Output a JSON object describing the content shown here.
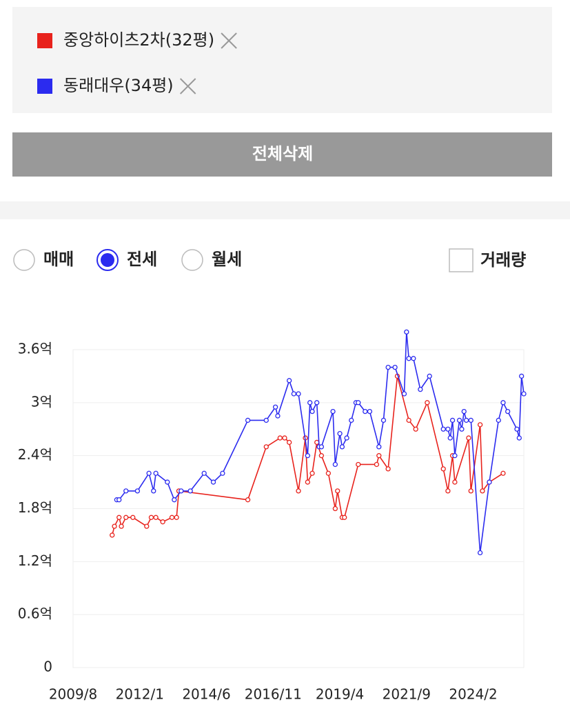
{
  "page": {
    "delete_all_button": "전체삭제",
    "trade_types": {
      "options": [
        "매매",
        "전세",
        "월세"
      ],
      "selected": 1
    },
    "volume_checkbox": {
      "label": "거래량",
      "checked": false
    }
  },
  "chart_data": {
    "type": "line",
    "xlim": [
      "2009/8",
      "2025/12"
    ],
    "xticks": [
      "2009/8",
      "2012/1",
      "2014/6",
      "2016/11",
      "2019/4",
      "2021/9",
      "2024/2"
    ],
    "ylim": [
      0,
      3.6
    ],
    "yticks": [
      0,
      {
        "value": 0.6,
        "label": "0.6억"
      },
      {
        "value": 1.2,
        "label": "1.2억"
      },
      {
        "value": 1.8,
        "label": "1.8억"
      },
      {
        "value": 2.4,
        "label": "2.4억"
      },
      {
        "value": 3,
        "label": "3억"
      },
      {
        "value": 3.6,
        "label": "3.6억"
      }
    ],
    "grid": true,
    "series": [
      {
        "name": "중앙하이츠2차(32평)",
        "color": "#e8221c",
        "x": [
          "2011/1",
          "2011/2",
          "2011/4",
          "2011/5",
          "2011/7",
          "2011/10",
          "2012/4",
          "2012/6",
          "2012/8",
          "2012/11",
          "2013/3",
          "2013/5",
          "2013/6",
          "2015/12",
          "2016/8",
          "2017/2",
          "2017/4",
          "2017/6",
          "2017/10",
          "2018/1",
          "2018/2",
          "2018/4",
          "2018/6",
          "2018/8",
          "2018/11",
          "2019/2",
          "2019/3",
          "2019/5",
          "2019/6",
          "2019/12",
          "2020/8",
          "2020/9",
          "2021/1",
          "2021/5",
          "2021/10",
          "2022/1",
          "2022/6",
          "2023/1",
          "2023/3",
          "2023/5",
          "2023/6",
          "2023/12",
          "2024/1",
          "2024/5",
          "2024/6",
          "2024/9",
          "2025/3"
        ],
        "values": [
          1.5,
          1.6,
          1.7,
          1.6,
          1.7,
          1.7,
          1.6,
          1.7,
          1.7,
          1.65,
          1.7,
          1.7,
          2.0,
          1.9,
          2.5,
          2.6,
          2.6,
          2.55,
          2.0,
          2.6,
          2.1,
          2.2,
          2.55,
          2.4,
          2.2,
          1.8,
          2.0,
          1.7,
          1.7,
          2.3,
          2.3,
          2.4,
          2.25,
          3.3,
          2.8,
          2.7,
          3.0,
          2.25,
          2.0,
          2.4,
          2.1,
          2.6,
          2.0,
          2.75,
          2.0,
          2.1,
          2.2
        ]
      },
      {
        "name": "동래대우(34평)",
        "color": "#2b2bef",
        "x": [
          "2011/3",
          "2011/4",
          "2011/7",
          "2011/12",
          "2012/5",
          "2012/7",
          "2012/8",
          "2013/1",
          "2013/4",
          "2013/7",
          "2013/11",
          "2014/5",
          "2014/9",
          "2015/1",
          "2015/12",
          "2016/8",
          "2016/12",
          "2017/1",
          "2017/6",
          "2017/8",
          "2017/10",
          "2018/2",
          "2018/3",
          "2018/4",
          "2018/6",
          "2018/7",
          "2018/8",
          "2019/1",
          "2019/2",
          "2019/4",
          "2019/5",
          "2019/7",
          "2019/9",
          "2019/11",
          "2019/12",
          "2020/3",
          "2020/5",
          "2020/9",
          "2020/11",
          "2021/1",
          "2021/4",
          "2021/8",
          "2021/9",
          "2021/10",
          "2021/12",
          "2022/3",
          "2022/7",
          "2023/1",
          "2023/3",
          "2023/4",
          "2023/5",
          "2023/6",
          "2023/8",
          "2023/9",
          "2023/10",
          "2023/11",
          "2024/1",
          "2024/5",
          "2024/9",
          "2025/1",
          "2025/3",
          "2025/5",
          "2025/9",
          "2025/10",
          "2025/11",
          "2025/12"
        ],
        "values": [
          1.9,
          1.9,
          2.0,
          2.0,
          2.2,
          2.0,
          2.2,
          2.1,
          1.9,
          2.0,
          2.0,
          2.2,
          2.1,
          2.2,
          2.8,
          2.8,
          2.95,
          2.85,
          3.25,
          3.1,
          3.1,
          2.4,
          3.0,
          2.9,
          3.0,
          2.5,
          2.5,
          2.9,
          2.3,
          2.65,
          2.5,
          2.6,
          2.8,
          3.0,
          3.0,
          2.9,
          2.9,
          2.5,
          2.8,
          3.4,
          3.4,
          3.1,
          3.8,
          3.5,
          3.5,
          3.15,
          3.3,
          2.7,
          2.7,
          2.6,
          2.8,
          2.4,
          2.8,
          2.7,
          2.9,
          2.8,
          2.8,
          1.3,
          2.1,
          2.8,
          3.0,
          2.9,
          2.7,
          2.6,
          3.3,
          3.1
        ]
      }
    ]
  }
}
